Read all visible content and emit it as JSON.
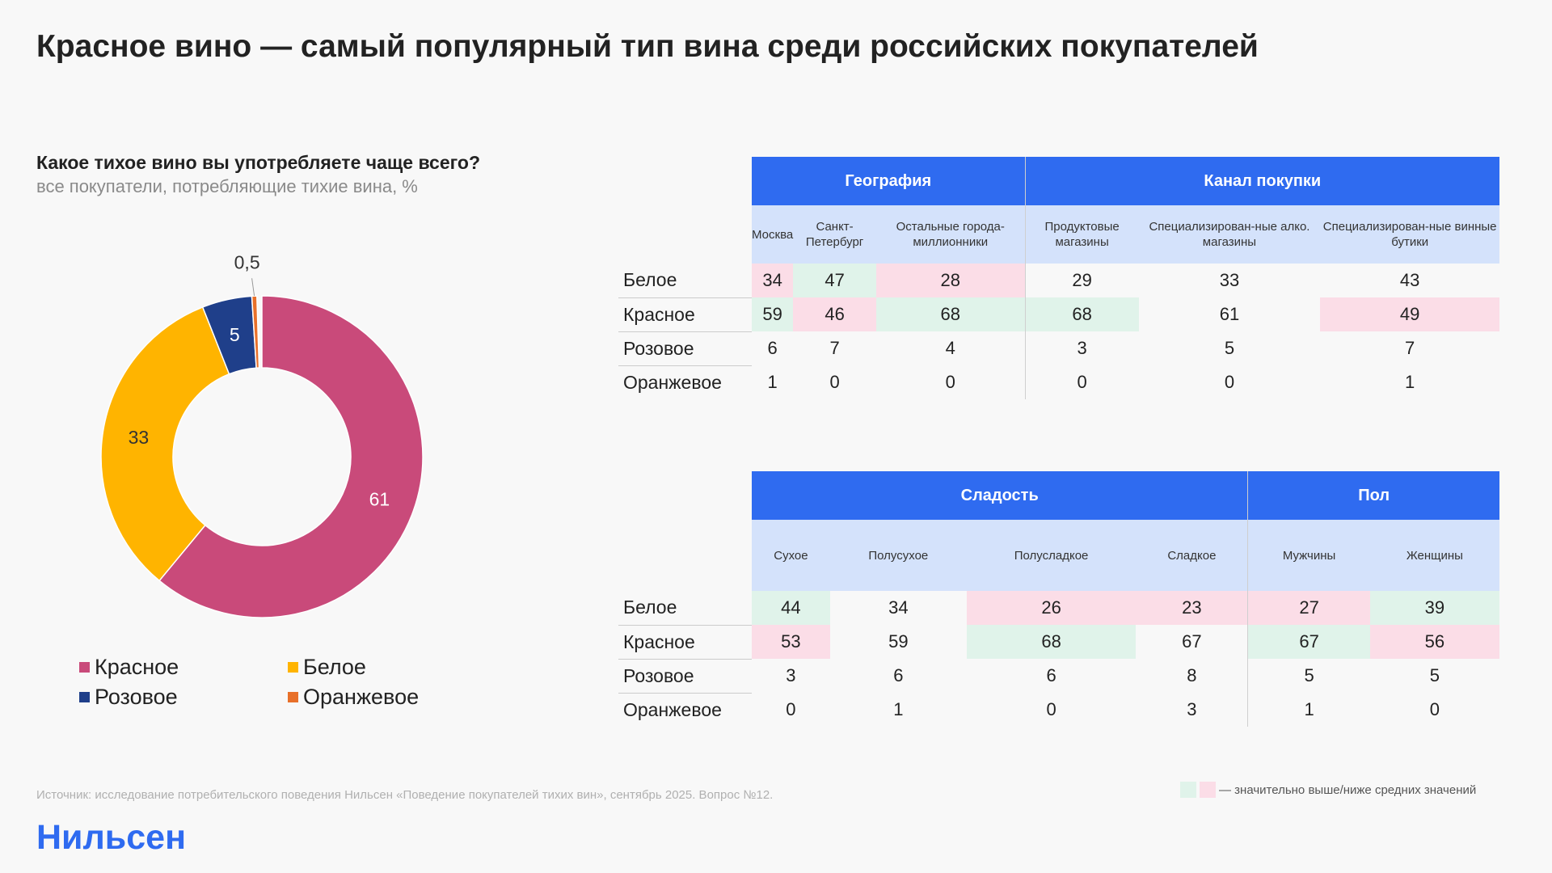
{
  "title": "Красное вино — самый популярный тип вина среди российских покупателей",
  "question": "Какое тихое вино вы употребляете чаще всего?",
  "question_sub": "все покупатели, потребляющие тихие вина, %",
  "chart_data": {
    "type": "pie",
    "donut": true,
    "categories": [
      "Красное",
      "Белое",
      "Розовое",
      "Оранжевое"
    ],
    "values": [
      61,
      33,
      5,
      0.5
    ],
    "labels": [
      "61",
      "33",
      "5",
      "0,5"
    ],
    "colors": [
      "#c94a7a",
      "#ffb400",
      "#1f3f8a",
      "#e8702a"
    ],
    "legend": "bottom"
  },
  "table1": {
    "groups": [
      {
        "label": "География",
        "span": 3
      },
      {
        "label": "Канал покупки",
        "span": 3
      }
    ],
    "columns": [
      "Москва",
      "Санкт-Петербург",
      "Остальные города-миллионники",
      "Продуктовые магазины",
      "Специализирован-ные алко. магазины",
      "Специализирован-ные винные бутики"
    ],
    "rows": [
      {
        "label": "Белое",
        "values": [
          "34",
          "47",
          "28",
          "29",
          "33",
          "43"
        ],
        "marks": [
          "p",
          "g",
          "p",
          "",
          "",
          ""
        ]
      },
      {
        "label": "Красное",
        "values": [
          "59",
          "46",
          "68",
          "68",
          "61",
          "49"
        ],
        "marks": [
          "g",
          "p",
          "g",
          "g",
          "",
          "p"
        ]
      },
      {
        "label": "Розовое",
        "values": [
          "6",
          "7",
          "4",
          "3",
          "5",
          "7"
        ],
        "marks": [
          "",
          "",
          "",
          "",
          "",
          ""
        ]
      },
      {
        "label": "Оранжевое",
        "values": [
          "1",
          "0",
          "0",
          "0",
          "0",
          "1"
        ],
        "marks": [
          "",
          "",
          "",
          "",
          "",
          ""
        ]
      }
    ]
  },
  "table2": {
    "groups": [
      {
        "label": "Сладость",
        "span": 4
      },
      {
        "label": "Пол",
        "span": 2
      }
    ],
    "columns": [
      "Сухое",
      "Полусухое",
      "Полусладкое",
      "Сладкое",
      "Мужчины",
      "Женщины"
    ],
    "rows": [
      {
        "label": "Белое",
        "values": [
          "44",
          "34",
          "26",
          "23",
          "27",
          "39"
        ],
        "marks": [
          "g",
          "",
          "p",
          "p",
          "p",
          "g"
        ]
      },
      {
        "label": "Красное",
        "values": [
          "53",
          "59",
          "68",
          "67",
          "67",
          "56"
        ],
        "marks": [
          "p",
          "",
          "g",
          "",
          "g",
          "p"
        ]
      },
      {
        "label": "Розовое",
        "values": [
          "3",
          "6",
          "6",
          "8",
          "5",
          "5"
        ],
        "marks": [
          "",
          "",
          "",
          "",
          "",
          ""
        ]
      },
      {
        "label": "Оранжевое",
        "values": [
          "0",
          "1",
          "0",
          "3",
          "1",
          "0"
        ],
        "marks": [
          "",
          "",
          "",
          "",
          "",
          ""
        ]
      }
    ]
  },
  "colors": {
    "above": "#e0f3ea",
    "below": "#fbdde7",
    "header": "#2f6bf0",
    "subheader": "#d4e2fb"
  },
  "source": "Источник: исследование потребительского поведения Нильсен «Поведение покупателей тихих вин», сентябрь 2025. Вопрос №12.",
  "note": "— значительно выше/ниже средних значений",
  "logo": "Нильсен"
}
